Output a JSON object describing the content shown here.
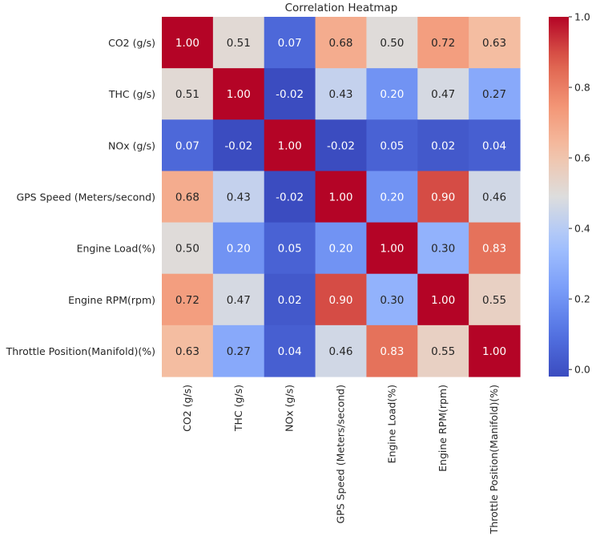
{
  "chart_data": {
    "type": "heatmap",
    "title": "Correlation Heatmap",
    "rows": [
      "CO2 (g/s)",
      "THC (g/s)",
      "NOx (g/s)",
      "GPS Speed (Meters/second)",
      "Engine Load(%)",
      "Engine RPM(rpm)",
      "Throttle Position(Manifold)(%)"
    ],
    "columns": [
      "CO2 (g/s)",
      "THC (g/s)",
      "NOx (g/s)",
      "GPS Speed (Meters/second)",
      "Engine Load(%)",
      "Engine RPM(rpm)",
      "Throttle Position(Manifold)(%)"
    ],
    "values": [
      [
        1.0,
        0.51,
        0.07,
        0.68,
        0.5,
        0.72,
        0.63
      ],
      [
        0.51,
        1.0,
        -0.02,
        0.43,
        0.2,
        0.47,
        0.27
      ],
      [
        0.07,
        -0.02,
        1.0,
        -0.02,
        0.05,
        0.02,
        0.04
      ],
      [
        0.68,
        0.43,
        -0.02,
        1.0,
        0.2,
        0.9,
        0.46
      ],
      [
        0.5,
        0.2,
        0.05,
        0.2,
        1.0,
        0.3,
        0.83
      ],
      [
        0.72,
        0.47,
        0.02,
        0.9,
        0.3,
        1.0,
        0.55
      ],
      [
        0.63,
        0.27,
        0.04,
        0.46,
        0.83,
        0.55,
        1.0
      ]
    ],
    "colormap": "coolwarm",
    "vmin": -0.02,
    "vmax": 1.0,
    "colorbar_ticks": [
      "0.0",
      "0.2",
      "0.4",
      "0.6",
      "0.8",
      "1.0"
    ],
    "colorbar_tick_values": [
      0.0,
      0.2,
      0.4,
      0.6,
      0.8,
      1.0
    ]
  }
}
